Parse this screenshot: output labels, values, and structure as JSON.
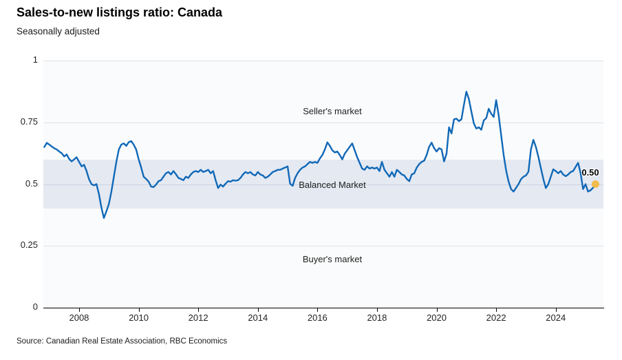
{
  "header": {
    "title": "Sales-to-new listings ratio: Canada",
    "subtitle": "Seasonally adjusted"
  },
  "footer": {
    "source": "Source: Canadian Real Estate Association, RBC Economics"
  },
  "chart_data": {
    "type": "line",
    "title": "Sales-to-new listings ratio: Canada",
    "subtitle": "Seasonally adjusted",
    "xlabel": "",
    "ylabel": "",
    "xlim": [
      2006.8,
      2025.6
    ],
    "ylim": [
      0,
      1
    ],
    "grid": "horizontal",
    "legend": "none",
    "frequency": "monthly",
    "x_ticks": [
      {
        "v": 2008,
        "label": "2008"
      },
      {
        "v": 2010,
        "label": "2010"
      },
      {
        "v": 2012,
        "label": "2012"
      },
      {
        "v": 2014,
        "label": "2014"
      },
      {
        "v": 2016,
        "label": "2016"
      },
      {
        "v": 2018,
        "label": "2018"
      },
      {
        "v": 2020,
        "label": "2020"
      },
      {
        "v": 2022,
        "label": "2022"
      },
      {
        "v": 2024,
        "label": "2024"
      }
    ],
    "y_ticks": [
      {
        "v": 1,
        "label": "1"
      },
      {
        "v": 0.75,
        "label": "0.75"
      },
      {
        "v": 0.5,
        "label": "0.5"
      },
      {
        "v": 0.25,
        "label": "0.25"
      },
      {
        "v": 0,
        "label": "0"
      }
    ],
    "y_gridlines": [
      0.25,
      0.5,
      0.75,
      1
    ],
    "balanced_band": [
      0.4,
      0.6
    ],
    "annotations": {
      "seller": "Seller's market",
      "balanced": "Balanced Market",
      "buyer": "Buyer's market"
    },
    "last_point": {
      "label": "0.50",
      "value": 0.5
    },
    "colors": {
      "line": "#1068b7",
      "band": "#e4e9f2",
      "plot_bg": "#fafbfc",
      "dot": "#f3bc4e",
      "axis": "#000000"
    },
    "series": [
      {
        "name": "Sales-to-new listings ratio",
        "x_start": 2006.8333,
        "x_step": 0.083333,
        "values": [
          0.65,
          0.667,
          0.66,
          0.652,
          0.645,
          0.64,
          0.632,
          0.625,
          0.612,
          0.62,
          0.602,
          0.592,
          0.6,
          0.609,
          0.59,
          0.572,
          0.578,
          0.553,
          0.52,
          0.5,
          0.495,
          0.5,
          0.46,
          0.405,
          0.363,
          0.39,
          0.42,
          0.47,
          0.53,
          0.59,
          0.64,
          0.66,
          0.665,
          0.655,
          0.67,
          0.674,
          0.66,
          0.64,
          0.6,
          0.567,
          0.53,
          0.521,
          0.51,
          0.49,
          0.488,
          0.498,
          0.512,
          0.516,
          0.53,
          0.544,
          0.549,
          0.539,
          0.553,
          0.54,
          0.525,
          0.521,
          0.516,
          0.53,
          0.525,
          0.539,
          0.549,
          0.553,
          0.549,
          0.558,
          0.549,
          0.553,
          0.558,
          0.544,
          0.553,
          0.516,
          0.484,
          0.498,
          0.49,
          0.502,
          0.512,
          0.51,
          0.516,
          0.514,
          0.516,
          0.525,
          0.539,
          0.549,
          0.544,
          0.549,
          0.539,
          0.535,
          0.549,
          0.539,
          0.535,
          0.525,
          0.53,
          0.539,
          0.549,
          0.553,
          0.558,
          0.558,
          0.563,
          0.567,
          0.572,
          0.502,
          0.493,
          0.525,
          0.544,
          0.558,
          0.567,
          0.572,
          0.581,
          0.59,
          0.586,
          0.59,
          0.586,
          0.604,
          0.618,
          0.641,
          0.669,
          0.655,
          0.637,
          0.628,
          0.632,
          0.618,
          0.6,
          0.623,
          0.637,
          0.651,
          0.665,
          0.637,
          0.609,
          0.586,
          0.563,
          0.558,
          0.572,
          0.563,
          0.567,
          0.563,
          0.567,
          0.553,
          0.59,
          0.558,
          0.544,
          0.53,
          0.549,
          0.53,
          0.558,
          0.549,
          0.539,
          0.535,
          0.521,
          0.512,
          0.539,
          0.544,
          0.567,
          0.581,
          0.59,
          0.595,
          0.618,
          0.651,
          0.668,
          0.646,
          0.632,
          0.645,
          0.641,
          0.592,
          0.623,
          0.73,
          0.705,
          0.762,
          0.765,
          0.755,
          0.762,
          0.82,
          0.874,
          0.845,
          0.795,
          0.745,
          0.725,
          0.73,
          0.72,
          0.758,
          0.767,
          0.805,
          0.785,
          0.772,
          0.84,
          0.78,
          0.7,
          0.62,
          0.555,
          0.51,
          0.48,
          0.47,
          0.485,
          0.5,
          0.52,
          0.53,
          0.535,
          0.55,
          0.64,
          0.679,
          0.65,
          0.61,
          0.565,
          0.52,
          0.484,
          0.5,
          0.53,
          0.56,
          0.553,
          0.544,
          0.553,
          0.539,
          0.532,
          0.539,
          0.549,
          0.553,
          0.57,
          0.586,
          0.545,
          0.48,
          0.5,
          0.47,
          0.475,
          0.485,
          0.5
        ]
      }
    ]
  }
}
